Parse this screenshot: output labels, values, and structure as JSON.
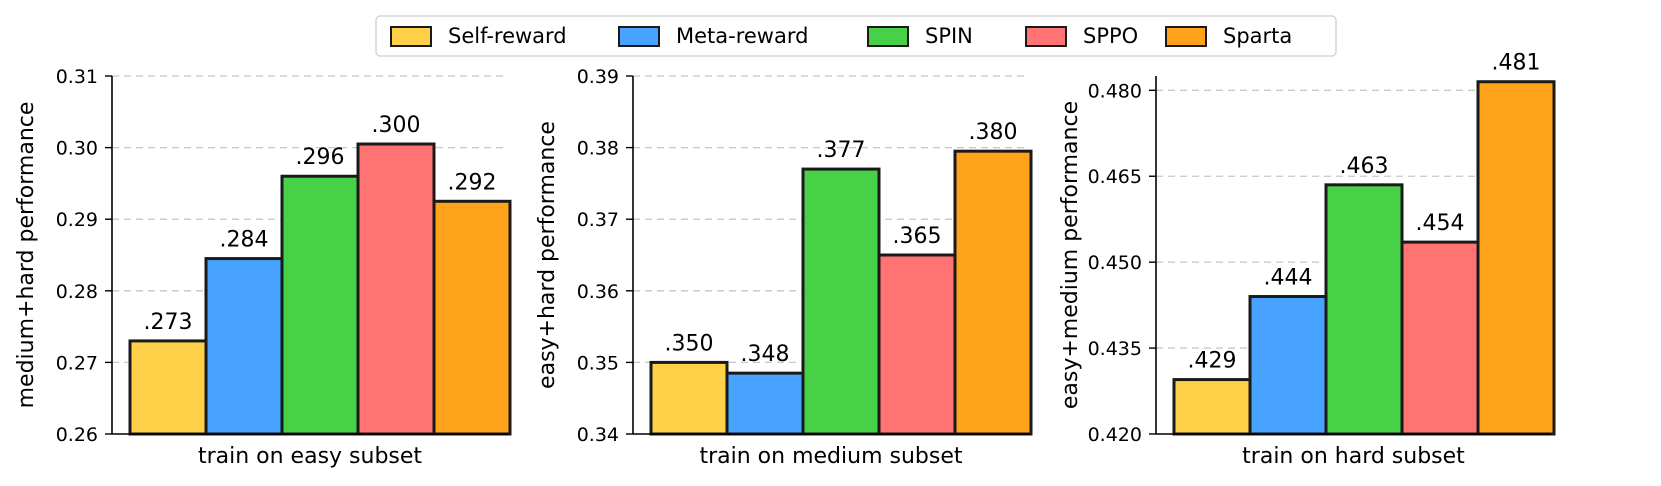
{
  "legend": {
    "entries": [
      {
        "label": "Self-reward",
        "color": "#FFD149"
      },
      {
        "label": "Meta-reward",
        "color": "#47A3FF"
      },
      {
        "label": "SPIN",
        "color": "#47D147"
      },
      {
        "label": "SPPO",
        "color": "#FF7373"
      },
      {
        "label": "Sparta",
        "color": "#FFA31A"
      }
    ],
    "placement": "top-center"
  },
  "chart_data": [
    {
      "type": "bar",
      "categories": [
        "Self-reward",
        "Meta-reward",
        "SPIN",
        "SPPO",
        "Sparta"
      ],
      "values": [
        0.273,
        0.2845,
        0.296,
        0.3005,
        0.2925
      ],
      "data_labels": [
        ".273",
        ".284",
        ".296",
        ".300",
        ".292"
      ],
      "xlabel": "train on easy subset",
      "ylabel": "medium+hard performance",
      "ylim": [
        0.26,
        0.31
      ],
      "yticks": [
        0.26,
        0.27,
        0.28,
        0.29,
        0.3,
        0.31
      ],
      "ytick_labels": [
        "0.26",
        "0.27",
        "0.28",
        "0.29",
        "0.30",
        "0.31"
      ],
      "grid": true
    },
    {
      "type": "bar",
      "categories": [
        "Self-reward",
        "Meta-reward",
        "SPIN",
        "SPPO",
        "Sparta"
      ],
      "values": [
        0.35,
        0.3485,
        0.377,
        0.365,
        0.3795
      ],
      "data_labels": [
        ".350",
        ".348",
        ".377",
        ".365",
        ".380"
      ],
      "xlabel": "train on medium subset",
      "ylabel": "easy+hard performance",
      "ylim": [
        0.34,
        0.39
      ],
      "yticks": [
        0.34,
        0.35,
        0.36,
        0.37,
        0.38,
        0.39
      ],
      "ytick_labels": [
        "0.34",
        "0.35",
        "0.36",
        "0.37",
        "0.38",
        "0.39"
      ],
      "grid": true
    },
    {
      "type": "bar",
      "categories": [
        "Self-reward",
        "Meta-reward",
        "SPIN",
        "SPPO",
        "Sparta"
      ],
      "values": [
        0.4295,
        0.444,
        0.4635,
        0.4535,
        0.4815
      ],
      "data_labels": [
        ".429",
        ".444",
        ".463",
        ".454",
        ".481"
      ],
      "xlabel": "train on hard subset",
      "ylabel": "easy+medium performance",
      "ylim": [
        0.42,
        0.4825
      ],
      "yticks": [
        0.42,
        0.435,
        0.45,
        0.465,
        0.48
      ],
      "ytick_labels": [
        "0.420",
        "0.435",
        "0.450",
        "0.465",
        "0.480"
      ],
      "grid": true
    }
  ]
}
